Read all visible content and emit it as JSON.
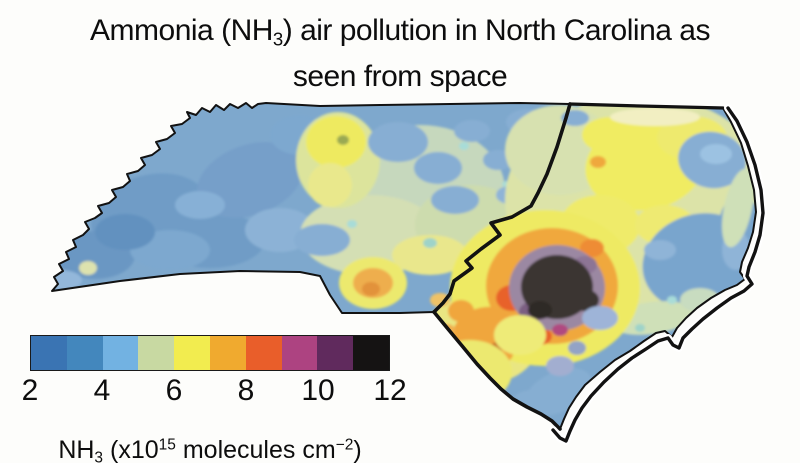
{
  "title": {
    "line1_pre": "Ammonia (NH",
    "line1_sub": "3",
    "line1_post": ") air pollution in North Carolina as",
    "line2": "seen from space"
  },
  "legend": {
    "ticks": [
      "2",
      "4",
      "6",
      "8",
      "10",
      "12"
    ],
    "colors": [
      "#3a74b3",
      "#4387bd",
      "#72b2e2",
      "#c8d9a2",
      "#f2ec4f",
      "#f0aa2f",
      "#e95e2a",
      "#ad4381",
      "#602a5d",
      "#151313"
    ],
    "caption": {
      "base1": "NH",
      "sub": "3",
      "base2": " (x10",
      "sup1": "15",
      "base3": " molecules cm",
      "sup2": "−2",
      "base4": ")"
    }
  },
  "map": {
    "outline_color": "#121212",
    "base_fill": "#7ea8cd",
    "hotspot_core_color": "#3a3430",
    "background": "#fdfdfb"
  },
  "chart_data": {
    "type": "heatmap",
    "title": "Ammonia (NH3) air pollution in North Carolina as seen from space",
    "colorbar": {
      "label": "NH3 (x10^15 molecules cm^-2)",
      "ticks": [
        2,
        4,
        6,
        8,
        10,
        12
      ],
      "range": [
        2,
        12
      ],
      "n_segments": 10,
      "segment_colors": [
        "#3a74b3",
        "#4387bd",
        "#72b2e2",
        "#c8d9a2",
        "#f2ec4f",
        "#f0aa2f",
        "#e95e2a",
        "#ad4381",
        "#602a5d",
        "#151313"
      ],
      "orientation": "horizontal",
      "position": "bottom-left"
    },
    "regions": [
      {
        "area": "western mountains",
        "approx_value": 3
      },
      {
        "area": "north-central yellow patch",
        "approx_value": 6
      },
      {
        "area": "central piedmont mixed blue-green",
        "approx_value": 4.5
      },
      {
        "area": "south-central amber patch",
        "approx_value": 7
      },
      {
        "area": "northeast coastal plain yellows",
        "approx_value": 6
      },
      {
        "area": "eastern sounds / coastal blues",
        "approx_value": 3.5
      },
      {
        "area": "southeastern hotspot outer orange ring",
        "approx_value": 7.5
      },
      {
        "area": "southeastern hotspot purple ring",
        "approx_value": 10
      },
      {
        "area": "southeastern hotspot dark core",
        "approx_value": 12
      }
    ],
    "annotations": [
      "thick black boundary encloses the eastern (coastal-plain) region of the state"
    ]
  }
}
